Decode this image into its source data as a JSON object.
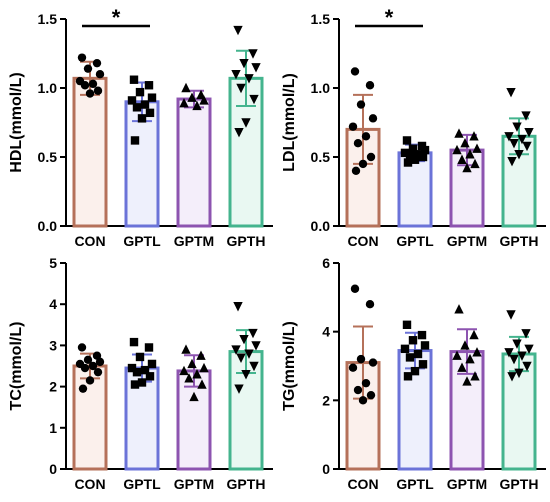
{
  "colors": {
    "CON": "#b5715a",
    "GPTL": "#6b73d8",
    "GPTM": "#8d54b0",
    "GPTH": "#44b48e",
    "CON_fill": "#fbf0ec",
    "GPTL_fill": "#eef0fc",
    "GPTM_fill": "#f4eefa",
    "GPTH_fill": "#e9f8f2",
    "axis": "#000000",
    "point": "#000000"
  },
  "chart_data": [
    {
      "id": "hdl",
      "type": "bar",
      "ylabel": "HDL(mmol/L)",
      "categories": [
        "CON",
        "GPTL",
        "GPTM",
        "GPTH"
      ],
      "markers": [
        "circle",
        "square",
        "triangle-up",
        "triangle-down"
      ],
      "ylim": [
        0,
        1.5
      ],
      "yticks": [
        "0.0",
        "0.5",
        "1.0",
        "1.5"
      ],
      "means": [
        1.07,
        0.9,
        0.92,
        1.07
      ],
      "sd": [
        0.12,
        0.14,
        0.06,
        0.2
      ],
      "points": [
        [
          1.22,
          1.18,
          1.14,
          1.1,
          1.05,
          1.03,
          1.02,
          0.98,
          0.96
        ],
        [
          1.06,
          1.02,
          0.97,
          0.93,
          0.91,
          0.88,
          0.86,
          0.82,
          0.78,
          0.62
        ],
        [
          1.0,
          0.95,
          0.93,
          0.91,
          0.89,
          0.87
        ],
        [
          1.42,
          1.25,
          1.18,
          1.15,
          1.1,
          1.07,
          1.0,
          0.92,
          0.75,
          0.68
        ]
      ],
      "significance": [
        {
          "from": 0,
          "to": 1,
          "label": "*"
        }
      ]
    },
    {
      "id": "ldl",
      "type": "bar",
      "ylabel": "LDL(mmol/L)",
      "categories": [
        "CON",
        "GPTL",
        "GPTM",
        "GPTH"
      ],
      "markers": [
        "circle",
        "square",
        "triangle-up",
        "triangle-down"
      ],
      "ylim": [
        0,
        1.5
      ],
      "yticks": [
        "0.0",
        "0.5",
        "1.0",
        "1.5"
      ],
      "means": [
        0.7,
        0.53,
        0.55,
        0.65
      ],
      "sd": [
        0.25,
        0.06,
        0.11,
        0.13
      ],
      "points": [
        [
          1.12,
          1.02,
          0.88,
          0.78,
          0.72,
          0.65,
          0.6,
          0.5,
          0.45,
          0.4
        ],
        [
          0.62,
          0.58,
          0.56,
          0.55,
          0.53,
          0.52,
          0.51,
          0.5,
          0.48,
          0.46
        ],
        [
          0.67,
          0.65,
          0.6,
          0.56,
          0.55,
          0.52,
          0.48,
          0.45,
          0.42
        ],
        [
          0.97,
          0.8,
          0.72,
          0.68,
          0.65,
          0.63,
          0.6,
          0.58,
          0.52,
          0.47
        ]
      ],
      "significance": [
        {
          "from": 0,
          "to": 1,
          "label": "*"
        }
      ]
    },
    {
      "id": "tc",
      "type": "bar",
      "ylabel": "TC(mmol/L)",
      "categories": [
        "CON",
        "GPTL",
        "GPTM",
        "GPTH"
      ],
      "markers": [
        "circle",
        "square",
        "triangle-up",
        "triangle-down"
      ],
      "ylim": [
        0,
        5
      ],
      "yticks": [
        "0",
        "1",
        "2",
        "3",
        "4",
        "5"
      ],
      "means": [
        2.5,
        2.45,
        2.38,
        2.85
      ],
      "sd": [
        0.3,
        0.33,
        0.38,
        0.52
      ],
      "points": [
        [
          2.95,
          2.75,
          2.65,
          2.6,
          2.55,
          2.5,
          2.45,
          2.35,
          2.15,
          1.95
        ],
        [
          3.08,
          2.95,
          2.72,
          2.55,
          2.45,
          2.4,
          2.35,
          2.25,
          2.1,
          2.05
        ],
        [
          2.9,
          2.75,
          2.55,
          2.45,
          2.38,
          2.3,
          2.2,
          2.05,
          1.75
        ],
        [
          3.95,
          3.3,
          3.15,
          3.0,
          2.9,
          2.8,
          2.7,
          2.5,
          2.3,
          1.95
        ]
      ],
      "significance": []
    },
    {
      "id": "tg",
      "type": "bar",
      "ylabel": "TG(mmol/L)",
      "categories": [
        "CON",
        "GPTL",
        "GPTM",
        "GPTH"
      ],
      "markers": [
        "circle",
        "square",
        "triangle-up",
        "triangle-down"
      ],
      "ylim": [
        0,
        6
      ],
      "yticks": [
        "0",
        "2",
        "4",
        "6"
      ],
      "means": [
        3.1,
        3.45,
        3.42,
        3.35
      ],
      "sd": [
        1.05,
        0.52,
        0.65,
        0.5
      ],
      "points": [
        [
          5.25,
          4.8,
          3.2,
          3.1,
          2.95,
          2.5,
          2.3,
          2.15,
          2.0
        ],
        [
          4.2,
          3.9,
          3.75,
          3.6,
          3.5,
          3.35,
          3.25,
          3.05,
          2.85,
          2.7
        ],
        [
          4.65,
          3.9,
          3.6,
          3.4,
          3.3,
          3.2,
          2.95,
          2.7,
          2.55
        ],
        [
          4.5,
          3.95,
          3.65,
          3.5,
          3.4,
          3.3,
          3.2,
          3.0,
          2.8,
          2.7
        ]
      ],
      "significance": []
    }
  ]
}
